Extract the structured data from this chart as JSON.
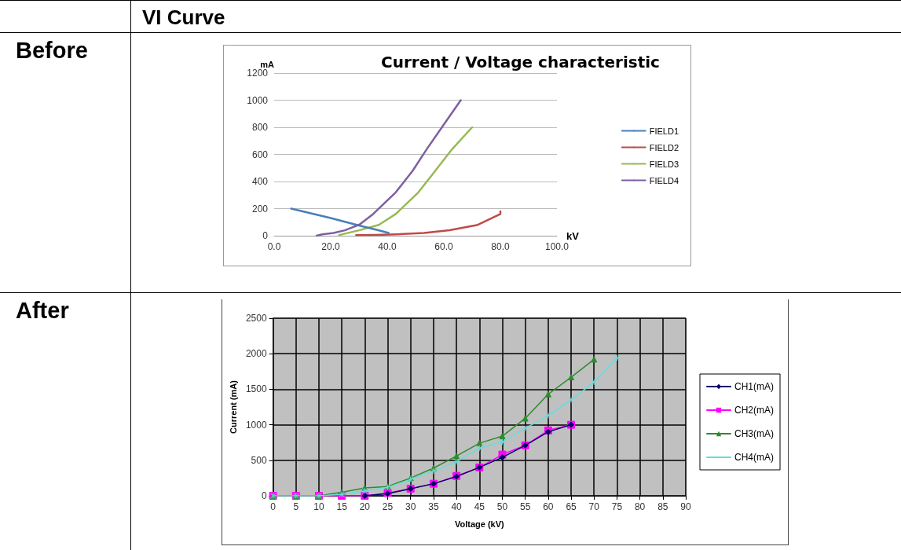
{
  "chart_data": [
    {
      "type": "line",
      "title": "Current / Voltage characteristic",
      "xlabel": "kV",
      "ylabel": "mA",
      "annotations": [
        "VI Curve",
        "Before"
      ],
      "xlim": [
        0,
        100
      ],
      "xticks": [
        {
          "value": 0,
          "label": "0.0"
        },
        {
          "value": 20,
          "label": "20.0"
        },
        {
          "value": 40,
          "label": "40.0"
        },
        {
          "value": 60,
          "label": "60.0"
        },
        {
          "value": 80,
          "label": "80.0"
        },
        {
          "value": 100,
          "label": "100.0"
        }
      ],
      "ylim": [
        0,
        1200
      ],
      "yticks": [
        0,
        200,
        400,
        600,
        800,
        1000,
        1200
      ],
      "grid": "y",
      "legend": "right",
      "marker": "none",
      "series": [
        {
          "name": "FIELD1",
          "color": "#4a7ebb",
          "x": [
            6,
            20,
            30,
            36,
            40.5
          ],
          "values": [
            200,
            130,
            75,
            45,
            20
          ]
        },
        {
          "name": "FIELD2",
          "color": "#be4b48",
          "x": [
            29,
            36,
            43,
            53,
            62,
            72,
            80,
            80
          ],
          "values": [
            5,
            6,
            10,
            20,
            40,
            80,
            160,
            180
          ]
        },
        {
          "name": "FIELD3",
          "color": "#98b954",
          "x": [
            23,
            30,
            37,
            43,
            51,
            57,
            63,
            70
          ],
          "values": [
            5,
            40,
            80,
            160,
            320,
            480,
            640,
            800
          ]
        },
        {
          "name": "FIELD4",
          "color": "#7d60a0",
          "x": [
            15,
            17,
            21,
            25,
            30,
            35,
            43,
            49,
            54,
            60,
            66
          ],
          "values": [
            0,
            10,
            20,
            40,
            80,
            160,
            320,
            480,
            640,
            820,
            1000
          ]
        }
      ]
    },
    {
      "type": "line",
      "xlabel": "Voltage (kV)",
      "ylabel": "Current (mA)",
      "annotations": [
        "After"
      ],
      "xlim": [
        0,
        90
      ],
      "xticks": [
        0,
        5,
        10,
        15,
        20,
        25,
        30,
        35,
        40,
        45,
        50,
        55,
        60,
        65,
        70,
        75,
        80,
        85,
        90
      ],
      "ylim": [
        0,
        2500
      ],
      "yticks": [
        0,
        500,
        1000,
        1500,
        2000,
        2500
      ],
      "grid": true,
      "legend": "right",
      "series": [
        {
          "name": "CH1(mA)",
          "color": "#000066",
          "marker": "diamond",
          "x": [
            20,
            25,
            30,
            35,
            40,
            45,
            50,
            55,
            60,
            65
          ],
          "values": [
            0,
            30,
            100,
            170,
            270,
            400,
            540,
            710,
            900,
            1000
          ]
        },
        {
          "name": "CH2(mA)",
          "color": "#ff00ff",
          "marker": "square",
          "x": [
            0,
            5,
            10,
            15,
            20,
            25,
            30,
            35,
            40,
            45,
            50,
            55,
            60,
            65
          ],
          "values": [
            0,
            0,
            0,
            0,
            0,
            40,
            100,
            170,
            280,
            400,
            580,
            710,
            920,
            1000
          ]
        },
        {
          "name": "CH3(mA)",
          "color": "#2e8b2e",
          "marker": "triangle",
          "x": [
            0,
            5,
            10,
            15,
            20,
            25,
            30,
            35,
            40,
            45,
            50,
            55,
            60,
            65,
            70
          ],
          "values": [
            0,
            0,
            0,
            50,
            110,
            130,
            250,
            390,
            560,
            740,
            840,
            1090,
            1430,
            1670,
            1920
          ]
        },
        {
          "name": "CH4(mA)",
          "color": "#66dddd",
          "marker": "cross",
          "x": [
            0,
            5,
            10,
            15,
            20,
            25,
            30,
            35,
            40,
            45,
            50,
            55,
            60,
            65,
            70,
            75
          ],
          "values": [
            0,
            0,
            0,
            20,
            70,
            120,
            230,
            350,
            480,
            670,
            760,
            950,
            1130,
            1350,
            1600,
            1940
          ]
        }
      ]
    }
  ]
}
